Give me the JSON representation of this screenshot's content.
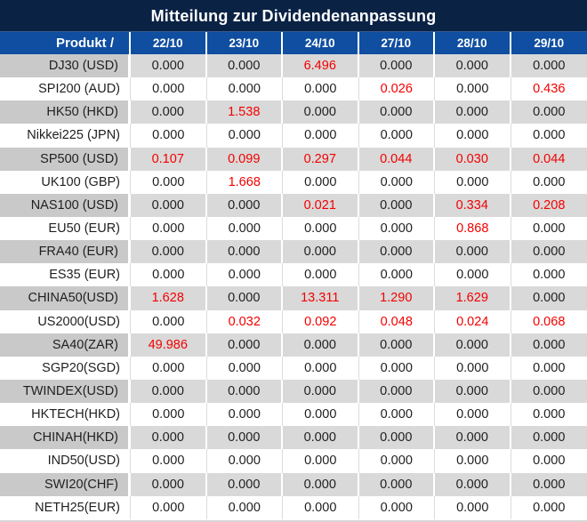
{
  "title": "Mitteilung zur Dividendenanpassung",
  "table": {
    "product_header": "Produkt /",
    "date_headers": [
      "22/10",
      "23/10",
      "24/10",
      "27/10",
      "28/10",
      "29/10"
    ],
    "rows": [
      {
        "product": "DJ30 (USD)",
        "values": [
          "0.000",
          "0.000",
          "6.496",
          "0.000",
          "0.000",
          "0.000"
        ],
        "red": [
          false,
          false,
          true,
          false,
          false,
          false
        ]
      },
      {
        "product": "SPI200 (AUD)",
        "values": [
          "0.000",
          "0.000",
          "0.000",
          "0.026",
          "0.000",
          "0.436"
        ],
        "red": [
          false,
          false,
          false,
          true,
          false,
          true
        ]
      },
      {
        "product": "HK50 (HKD)",
        "values": [
          "0.000",
          "1.538",
          "0.000",
          "0.000",
          "0.000",
          "0.000"
        ],
        "red": [
          false,
          true,
          false,
          false,
          false,
          false
        ]
      },
      {
        "product": "Nikkei225 (JPN)",
        "values": [
          "0.000",
          "0.000",
          "0.000",
          "0.000",
          "0.000",
          "0.000"
        ],
        "red": [
          false,
          false,
          false,
          false,
          false,
          false
        ]
      },
      {
        "product": "SP500 (USD)",
        "values": [
          "0.107",
          "0.099",
          "0.297",
          "0.044",
          "0.030",
          "0.044"
        ],
        "red": [
          true,
          true,
          true,
          true,
          true,
          true
        ]
      },
      {
        "product": "UK100 (GBP)",
        "values": [
          "0.000",
          "1.668",
          "0.000",
          "0.000",
          "0.000",
          "0.000"
        ],
        "red": [
          false,
          true,
          false,
          false,
          false,
          false
        ]
      },
      {
        "product": "NAS100 (USD)",
        "values": [
          "0.000",
          "0.000",
          "0.021",
          "0.000",
          "0.334",
          "0.208"
        ],
        "red": [
          false,
          false,
          true,
          false,
          true,
          true
        ]
      },
      {
        "product": "EU50 (EUR)",
        "values": [
          "0.000",
          "0.000",
          "0.000",
          "0.000",
          "0.868",
          "0.000"
        ],
        "red": [
          false,
          false,
          false,
          false,
          true,
          false
        ]
      },
      {
        "product": "FRA40 (EUR)",
        "values": [
          "0.000",
          "0.000",
          "0.000",
          "0.000",
          "0.000",
          "0.000"
        ],
        "red": [
          false,
          false,
          false,
          false,
          false,
          false
        ]
      },
      {
        "product": "ES35 (EUR)",
        "values": [
          "0.000",
          "0.000",
          "0.000",
          "0.000",
          "0.000",
          "0.000"
        ],
        "red": [
          false,
          false,
          false,
          false,
          false,
          false
        ]
      },
      {
        "product": "CHINA50(USD)",
        "values": [
          "1.628",
          "0.000",
          "13.311",
          "1.290",
          "1.629",
          "0.000"
        ],
        "red": [
          true,
          false,
          true,
          true,
          true,
          false
        ]
      },
      {
        "product": "US2000(USD)",
        "values": [
          "0.000",
          "0.032",
          "0.092",
          "0.048",
          "0.024",
          "0.068"
        ],
        "red": [
          false,
          true,
          true,
          true,
          true,
          true
        ]
      },
      {
        "product": "SA40(ZAR)",
        "values": [
          "49.986",
          "0.000",
          "0.000",
          "0.000",
          "0.000",
          "0.000"
        ],
        "red": [
          true,
          false,
          false,
          false,
          false,
          false
        ]
      },
      {
        "product": "SGP20(SGD)",
        "values": [
          "0.000",
          "0.000",
          "0.000",
          "0.000",
          "0.000",
          "0.000"
        ],
        "red": [
          false,
          false,
          false,
          false,
          false,
          false
        ]
      },
      {
        "product": "TWINDEX(USD)",
        "values": [
          "0.000",
          "0.000",
          "0.000",
          "0.000",
          "0.000",
          "0.000"
        ],
        "red": [
          false,
          false,
          false,
          false,
          false,
          false
        ]
      },
      {
        "product": "HKTECH(HKD)",
        "values": [
          "0.000",
          "0.000",
          "0.000",
          "0.000",
          "0.000",
          "0.000"
        ],
        "red": [
          false,
          false,
          false,
          false,
          false,
          false
        ]
      },
      {
        "product": "CHINAH(HKD)",
        "values": [
          "0.000",
          "0.000",
          "0.000",
          "0.000",
          "0.000",
          "0.000"
        ],
        "red": [
          false,
          false,
          false,
          false,
          false,
          false
        ]
      },
      {
        "product": "IND50(USD)",
        "values": [
          "0.000",
          "0.000",
          "0.000",
          "0.000",
          "0.000",
          "0.000"
        ],
        "red": [
          false,
          false,
          false,
          false,
          false,
          false
        ]
      },
      {
        "product": "SWI20(CHF)",
        "values": [
          "0.000",
          "0.000",
          "0.000",
          "0.000",
          "0.000",
          "0.000"
        ],
        "red": [
          false,
          false,
          false,
          false,
          false,
          false
        ]
      },
      {
        "product": "NETH25(EUR)",
        "values": [
          "0.000",
          "0.000",
          "0.000",
          "0.000",
          "0.000",
          "0.000"
        ],
        "red": [
          false,
          false,
          false,
          false,
          false,
          false
        ]
      }
    ]
  },
  "colors": {
    "title_bar_bg": "#0a2244",
    "header_row_bg": "#0f4ea0",
    "stripe_value_bg": "#d9d9d9",
    "stripe_product_bg": "#c9c9c9",
    "negative_value_red": "#f40000",
    "text_black": "#1f1f1f"
  }
}
